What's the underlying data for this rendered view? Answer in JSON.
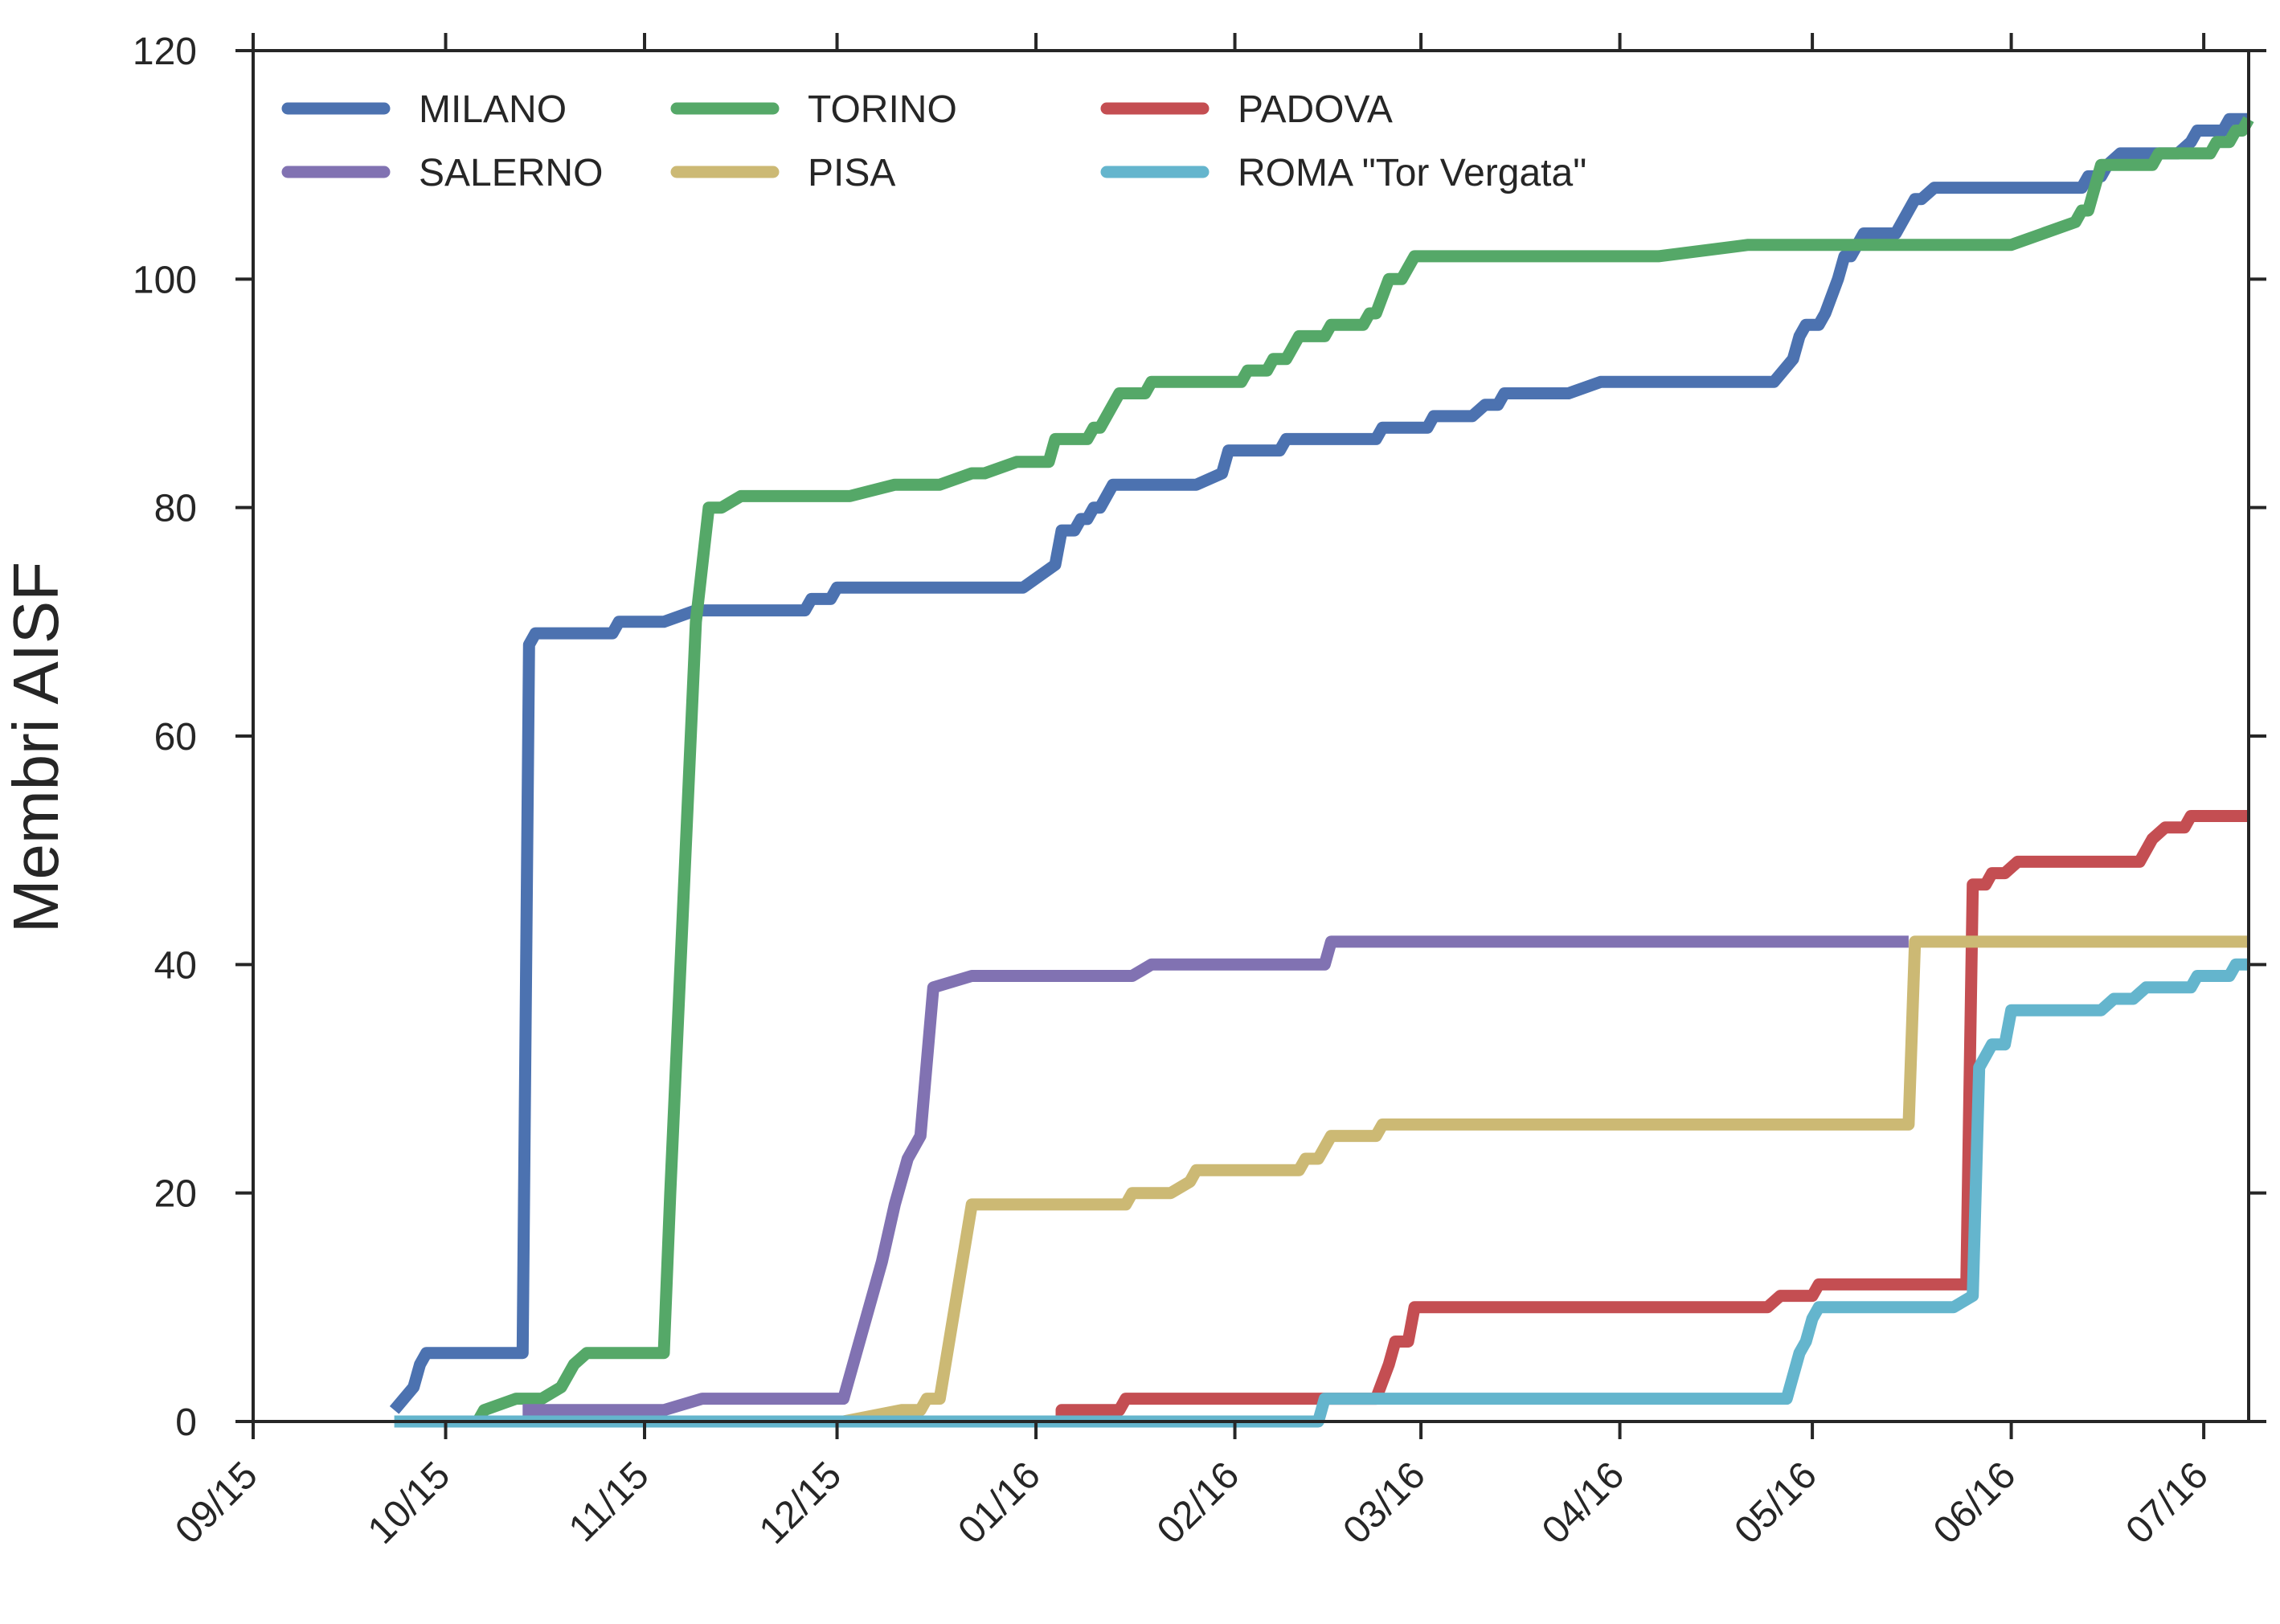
{
  "chart_data": {
    "type": "line",
    "title": "",
    "xlabel": "",
    "ylabel": "Membri AISF",
    "ylim": [
      0,
      120
    ],
    "yticks": [
      0,
      20,
      40,
      60,
      80,
      100,
      120
    ],
    "x_range_days": [
      0,
      311
    ],
    "xtick_labels": [
      {
        "day": 0,
        "label": "09/15"
      },
      {
        "day": 30,
        "label": "10/15"
      },
      {
        "day": 61,
        "label": "11/15"
      },
      {
        "day": 91,
        "label": "12/15"
      },
      {
        "day": 122,
        "label": "01/16"
      },
      {
        "day": 153,
        "label": "02/16"
      },
      {
        "day": 182,
        "label": "03/16"
      },
      {
        "day": 213,
        "label": "04/16"
      },
      {
        "day": 243,
        "label": "05/16"
      },
      {
        "day": 274,
        "label": "06/16"
      },
      {
        "day": 304,
        "label": "07/16"
      }
    ],
    "grid": false,
    "legend_position": "top-left",
    "series": [
      {
        "name": "MILANO",
        "color": "#4C72B0",
        "points": [
          [
            22,
            1
          ],
          [
            25,
            3
          ],
          [
            26,
            5
          ],
          [
            27,
            6
          ],
          [
            42,
            6
          ],
          [
            43,
            68
          ],
          [
            44,
            69
          ],
          [
            56,
            69
          ],
          [
            57,
            70
          ],
          [
            64,
            70
          ],
          [
            69,
            71
          ],
          [
            86,
            71
          ],
          [
            87,
            72
          ],
          [
            90,
            72
          ],
          [
            91,
            73
          ],
          [
            120,
            73
          ],
          [
            125,
            75
          ],
          [
            126,
            78
          ],
          [
            128,
            78
          ],
          [
            129,
            79
          ],
          [
            130,
            79
          ],
          [
            131,
            80
          ],
          [
            132,
            80
          ],
          [
            134,
            82
          ],
          [
            147,
            82
          ],
          [
            151,
            83
          ],
          [
            152,
            85
          ],
          [
            160,
            85
          ],
          [
            161,
            86
          ],
          [
            175,
            86
          ],
          [
            176,
            87
          ],
          [
            183,
            87
          ],
          [
            184,
            88
          ],
          [
            190,
            88
          ],
          [
            192,
            89
          ],
          [
            194,
            89
          ],
          [
            195,
            90
          ],
          [
            205,
            90
          ],
          [
            210,
            91
          ],
          [
            237,
            91
          ],
          [
            240,
            93
          ],
          [
            241,
            95
          ],
          [
            242,
            96
          ],
          [
            244,
            96
          ],
          [
            245,
            97
          ],
          [
            247,
            100
          ],
          [
            248,
            102
          ],
          [
            249,
            102
          ],
          [
            251,
            104
          ],
          [
            256,
            104
          ],
          [
            259,
            107
          ],
          [
            260,
            107
          ],
          [
            262,
            108
          ],
          [
            285,
            108
          ],
          [
            286,
            109
          ],
          [
            288,
            109
          ],
          [
            289,
            110
          ],
          [
            291,
            111
          ],
          [
            300,
            111
          ],
          [
            302,
            112
          ],
          [
            303,
            113
          ],
          [
            307,
            113
          ],
          [
            308,
            114
          ],
          [
            311,
            114
          ]
        ]
      },
      {
        "name": "TORINO",
        "color": "#55A868",
        "points": [
          [
            24,
            0
          ],
          [
            35,
            0
          ],
          [
            36,
            1
          ],
          [
            41,
            2
          ],
          [
            44,
            2
          ],
          [
            45,
            2
          ],
          [
            48,
            3
          ],
          [
            50,
            5
          ],
          [
            52,
            6
          ],
          [
            64,
            6
          ],
          [
            65,
            20
          ],
          [
            69,
            70
          ],
          [
            70,
            75
          ],
          [
            71,
            80
          ],
          [
            73,
            80
          ],
          [
            76,
            81
          ],
          [
            93,
            81
          ],
          [
            100,
            82
          ],
          [
            107,
            82
          ],
          [
            112,
            83
          ],
          [
            114,
            83
          ],
          [
            119,
            84
          ],
          [
            124,
            84
          ],
          [
            125,
            86
          ],
          [
            130,
            86
          ],
          [
            131,
            87
          ],
          [
            132,
            87
          ],
          [
            135,
            90
          ],
          [
            139,
            90
          ],
          [
            140,
            91
          ],
          [
            154,
            91
          ],
          [
            155,
            92
          ],
          [
            158,
            92
          ],
          [
            159,
            93
          ],
          [
            161,
            93
          ],
          [
            163,
            95
          ],
          [
            167,
            95
          ],
          [
            168,
            96
          ],
          [
            173,
            96
          ],
          [
            174,
            97
          ],
          [
            175,
            97
          ],
          [
            177,
            100
          ],
          [
            179,
            100
          ],
          [
            181,
            102
          ],
          [
            219,
            102
          ],
          [
            233,
            103
          ],
          [
            274,
            103
          ],
          [
            284,
            105
          ],
          [
            285,
            106
          ],
          [
            286,
            106
          ],
          [
            288,
            110
          ],
          [
            296,
            110
          ],
          [
            297,
            111
          ],
          [
            305,
            111
          ],
          [
            306,
            112
          ],
          [
            308,
            112
          ],
          [
            309,
            113
          ],
          [
            310,
            113
          ],
          [
            311,
            114
          ]
        ]
      },
      {
        "name": "PADOVA",
        "color": "#C44E52",
        "points": [
          [
            126,
            0
          ],
          [
            126,
            1
          ],
          [
            135,
            1
          ],
          [
            136,
            2
          ],
          [
            166,
            2
          ],
          [
            175,
            2
          ],
          [
            177,
            5
          ],
          [
            178,
            7
          ],
          [
            180,
            7
          ],
          [
            181,
            10
          ],
          [
            236,
            10
          ],
          [
            238,
            11
          ],
          [
            240,
            11
          ],
          [
            243,
            11
          ],
          [
            244,
            12
          ],
          [
            267,
            12
          ],
          [
            268,
            47
          ],
          [
            270,
            47
          ],
          [
            271,
            48
          ],
          [
            273,
            48
          ],
          [
            275,
            49
          ],
          [
            294,
            49
          ],
          [
            296,
            51
          ],
          [
            298,
            52
          ],
          [
            301,
            52
          ],
          [
            302,
            53
          ],
          [
            311,
            53
          ]
        ]
      },
      {
        "name": "SALERNO",
        "color": "#8172B2",
        "points": [
          [
            42,
            1
          ],
          [
            64,
            1
          ],
          [
            70,
            2
          ],
          [
            92,
            2
          ],
          [
            98,
            14
          ],
          [
            100,
            19
          ],
          [
            102,
            23
          ],
          [
            104,
            25
          ],
          [
            106,
            38
          ],
          [
            112,
            39
          ],
          [
            137,
            39
          ],
          [
            140,
            40
          ],
          [
            167,
            40
          ],
          [
            168,
            42
          ],
          [
            258,
            42
          ]
        ]
      },
      {
        "name": "PISA",
        "color": "#CCB974",
        "points": [
          [
            92,
            0
          ],
          [
            101,
            1
          ],
          [
            104,
            1
          ],
          [
            105,
            2
          ],
          [
            107,
            2
          ],
          [
            112,
            19
          ],
          [
            136,
            19
          ],
          [
            137,
            20
          ],
          [
            143,
            20
          ],
          [
            146,
            21
          ],
          [
            147,
            22
          ],
          [
            163,
            22
          ],
          [
            164,
            23
          ],
          [
            166,
            23
          ],
          [
            168,
            25
          ],
          [
            175,
            25
          ],
          [
            176,
            26
          ],
          [
            258,
            26
          ],
          [
            259,
            42
          ],
          [
            311,
            42
          ]
        ]
      },
      {
        "name": "ROMA \"Tor Vergata\"",
        "color": "#64B5CD",
        "points": [
          [
            22,
            0
          ],
          [
            166,
            0
          ],
          [
            167,
            2
          ],
          [
            239,
            2
          ],
          [
            241,
            6
          ],
          [
            242,
            7
          ],
          [
            243,
            9
          ],
          [
            244,
            10
          ],
          [
            265,
            10
          ],
          [
            268,
            11
          ],
          [
            269,
            31
          ],
          [
            270,
            32
          ],
          [
            271,
            33
          ],
          [
            273,
            33
          ],
          [
            274,
            36
          ],
          [
            288,
            36
          ],
          [
            290,
            37
          ],
          [
            293,
            37
          ],
          [
            295,
            38
          ],
          [
            302,
            38
          ],
          [
            303,
            39
          ],
          [
            308,
            39
          ],
          [
            309,
            40
          ],
          [
            311,
            40
          ]
        ]
      }
    ]
  }
}
